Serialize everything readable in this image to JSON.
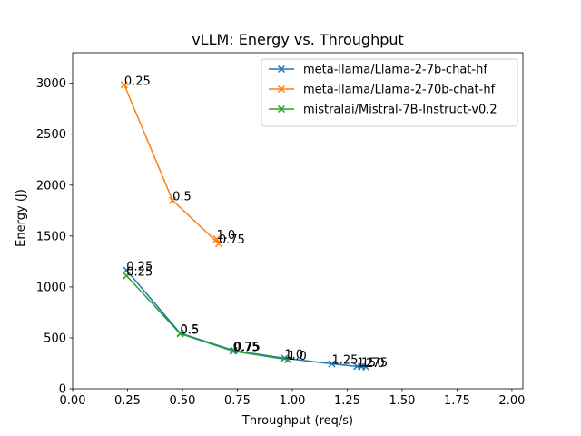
{
  "chart_data": {
    "type": "line",
    "title": "vLLM: Energy vs. Throughput",
    "xlabel": "Throughput (req/s)",
    "ylabel": "Energy (J)",
    "xlim": [
      0,
      2.05
    ],
    "ylim": [
      0,
      3300
    ],
    "xticks": [
      0.0,
      0.25,
      0.5,
      0.75,
      1.0,
      1.25,
      1.5,
      1.75,
      2.0
    ],
    "xtick_labels": [
      "0.00",
      "0.25",
      "0.50",
      "0.75",
      "1.00",
      "1.25",
      "1.50",
      "1.75",
      "2.00"
    ],
    "yticks": [
      0,
      500,
      1000,
      1500,
      2000,
      2500,
      3000
    ],
    "ytick_labels": [
      "0",
      "500",
      "1000",
      "1500",
      "2000",
      "2500",
      "3000"
    ],
    "grid": false,
    "legend_position": "top-right",
    "marker": "x",
    "series": [
      {
        "name": "meta-llama/Llama-2-7b-chat-hf",
        "color": "#1f77b4",
        "points": [
          {
            "x": 0.245,
            "y": 1165,
            "label": "0.25"
          },
          {
            "x": 0.49,
            "y": 545,
            "label": "0.5"
          },
          {
            "x": 0.735,
            "y": 375,
            "label": "0.75"
          },
          {
            "x": 0.965,
            "y": 300,
            "label": "1.0"
          },
          {
            "x": 1.18,
            "y": 245,
            "label": "1.25"
          },
          {
            "x": 1.295,
            "y": 220,
            "label": "1.5"
          },
          {
            "x": 1.315,
            "y": 218,
            "label": "1.75"
          },
          {
            "x": 1.335,
            "y": 215,
            "label": "2.0"
          }
        ]
      },
      {
        "name": "meta-llama/Llama-2-70b-chat-hf",
        "color": "#ff7f0e",
        "points": [
          {
            "x": 0.235,
            "y": 2985,
            "label": "0.25"
          },
          {
            "x": 0.455,
            "y": 1850,
            "label": "0.5"
          },
          {
            "x": 0.665,
            "y": 1425,
            "label": "0.75"
          },
          {
            "x": 0.655,
            "y": 1470,
            "label": "1.0"
          }
        ]
      },
      {
        "name": "mistralai/Mistral-7B-Instruct-v0.2",
        "color": "#2ca02c",
        "points": [
          {
            "x": 0.245,
            "y": 1110,
            "label": "0.25"
          },
          {
            "x": 0.49,
            "y": 540,
            "label": "0.5"
          },
          {
            "x": 0.73,
            "y": 370,
            "label": "0.75"
          },
          {
            "x": 0.98,
            "y": 285,
            "label": "1.0"
          }
        ]
      }
    ]
  }
}
